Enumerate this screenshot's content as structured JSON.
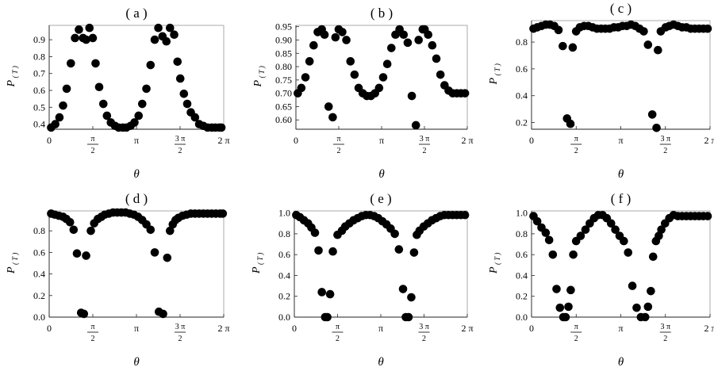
{
  "chart_data": [
    {
      "id": "a",
      "type": "scatter",
      "title": "( a )",
      "ylabel": "P",
      "ylabel_sub": "( T )",
      "xlabel": "θ",
      "xlim": [
        0,
        6.2832
      ],
      "ylim": [
        0.37,
        0.985
      ],
      "yticks": [
        0.4,
        0.5,
        0.6,
        0.7,
        0.8,
        0.9
      ],
      "ytick_labels": [
        "0.4",
        "0.5",
        "0.6",
        "0.7",
        "0.8",
        "0.9"
      ],
      "x": [
        0.07,
        0.22,
        0.37,
        0.5,
        0.63,
        0.78,
        0.93,
        1.07,
        1.22,
        1.33,
        1.45,
        1.57,
        1.67,
        1.8,
        1.95,
        2.08,
        2.22,
        2.37,
        2.5,
        2.65,
        2.78,
        2.93,
        3.07,
        3.22,
        3.35,
        3.5,
        3.65,
        3.8,
        3.93,
        4.08,
        4.22,
        4.35,
        4.5,
        4.62,
        4.72,
        4.85,
        4.97,
        5.1,
        5.25,
        5.4,
        5.55,
        5.7,
        5.85,
        5.98,
        6.12,
        6.2
      ],
      "y": [
        0.38,
        0.4,
        0.44,
        0.51,
        0.61,
        0.76,
        0.91,
        0.96,
        0.91,
        0.9,
        0.97,
        0.91,
        0.76,
        0.62,
        0.52,
        0.45,
        0.41,
        0.39,
        0.38,
        0.38,
        0.38,
        0.39,
        0.41,
        0.45,
        0.52,
        0.61,
        0.75,
        0.9,
        0.97,
        0.92,
        0.89,
        0.97,
        0.93,
        0.77,
        0.67,
        0.58,
        0.52,
        0.47,
        0.44,
        0.4,
        0.39,
        0.38,
        0.38,
        0.38,
        0.38,
        0.38
      ]
    },
    {
      "id": "b",
      "type": "scatter",
      "title": "( b )",
      "ylabel": "P",
      "ylabel_sub": "( T )",
      "xlabel": "θ",
      "xlim": [
        0,
        6.2832
      ],
      "ylim": [
        0.565,
        0.955
      ],
      "yticks": [
        0.6,
        0.65,
        0.7,
        0.75,
        0.8,
        0.85,
        0.9,
        0.95
      ],
      "ytick_labels": [
        "0.60",
        "0.65",
        "0.70",
        "0.75",
        "0.80",
        "0.85",
        "0.90",
        "0.95"
      ],
      "x": [
        0.07,
        0.2,
        0.35,
        0.5,
        0.65,
        0.8,
        0.95,
        1.05,
        1.2,
        1.35,
        1.45,
        1.57,
        1.7,
        1.85,
        2.0,
        2.15,
        2.3,
        2.45,
        2.6,
        2.75,
        2.9,
        3.05,
        3.2,
        3.35,
        3.5,
        3.65,
        3.8,
        3.95,
        4.1,
        4.25,
        4.4,
        4.5,
        4.65,
        4.72,
        4.85,
        5.0,
        5.15,
        5.3,
        5.45,
        5.6,
        5.75,
        5.9,
        6.05,
        6.2
      ],
      "y": [
        0.7,
        0.72,
        0.76,
        0.82,
        0.88,
        0.93,
        0.94,
        0.92,
        0.65,
        0.61,
        0.91,
        0.94,
        0.93,
        0.9,
        0.82,
        0.77,
        0.72,
        0.7,
        0.69,
        0.69,
        0.7,
        0.72,
        0.76,
        0.81,
        0.87,
        0.92,
        0.94,
        0.92,
        0.89,
        0.69,
        0.58,
        0.9,
        0.94,
        0.94,
        0.92,
        0.88,
        0.83,
        0.77,
        0.73,
        0.71,
        0.7,
        0.7,
        0.7,
        0.7
      ]
    },
    {
      "id": "c",
      "type": "scatter",
      "title": "( c )",
      "ylabel": "P",
      "ylabel_sub": "( T )",
      "xlabel": "θ",
      "xlim": [
        0,
        6.2832
      ],
      "ylim": [
        0.15,
        0.96
      ],
      "yticks": [
        0.2,
        0.4,
        0.6,
        0.8
      ],
      "ytick_labels": [
        "0.2",
        "0.4",
        "0.6",
        "0.8"
      ],
      "x": [
        0.07,
        0.2,
        0.35,
        0.5,
        0.65,
        0.8,
        0.95,
        1.1,
        1.25,
        1.37,
        1.45,
        1.57,
        1.7,
        1.85,
        2.0,
        2.15,
        2.3,
        2.45,
        2.6,
        2.75,
        2.9,
        3.05,
        3.2,
        3.35,
        3.5,
        3.65,
        3.8,
        3.95,
        4.1,
        4.25,
        4.4,
        4.45,
        4.55,
        4.72,
        4.85,
        5.0,
        5.15,
        5.3,
        5.45,
        5.6,
        5.75,
        5.9,
        6.05,
        6.2
      ],
      "y": [
        0.9,
        0.91,
        0.92,
        0.93,
        0.93,
        0.92,
        0.89,
        0.77,
        0.23,
        0.19,
        0.76,
        0.88,
        0.91,
        0.92,
        0.92,
        0.91,
        0.9,
        0.9,
        0.9,
        0.9,
        0.91,
        0.91,
        0.92,
        0.92,
        0.93,
        0.92,
        0.9,
        0.88,
        0.78,
        0.26,
        0.16,
        0.74,
        0.88,
        0.91,
        0.92,
        0.93,
        0.92,
        0.91,
        0.91,
        0.9,
        0.9,
        0.9,
        0.9,
        0.9
      ]
    },
    {
      "id": "d",
      "type": "scatter",
      "title": "( d )",
      "ylabel": "P",
      "ylabel_sub": "( T )",
      "xlabel": "θ",
      "xlim": [
        0,
        6.2832
      ],
      "ylim": [
        0,
        0.985
      ],
      "yticks": [
        0,
        0.2,
        0.4,
        0.6,
        0.8
      ],
      "ytick_labels": [
        "0.0",
        "0.2",
        "0.4",
        "0.6",
        "0.8"
      ],
      "x": [
        0.07,
        0.2,
        0.35,
        0.5,
        0.62,
        0.75,
        0.88,
        1.0,
        1.15,
        1.25,
        1.33,
        1.5,
        1.62,
        1.75,
        1.88,
        2.0,
        2.15,
        2.3,
        2.45,
        2.6,
        2.75,
        2.9,
        3.05,
        3.2,
        3.35,
        3.5,
        3.65,
        3.8,
        3.95,
        4.1,
        4.25,
        4.35,
        4.45,
        4.55,
        4.65,
        4.8,
        4.95,
        5.1,
        5.25,
        5.4,
        5.55,
        5.7,
        5.85,
        6.0,
        6.15,
        6.25
      ],
      "y": [
        0.96,
        0.95,
        0.94,
        0.93,
        0.91,
        0.88,
        0.81,
        0.59,
        0.04,
        0.03,
        0.57,
        0.8,
        0.87,
        0.91,
        0.93,
        0.95,
        0.96,
        0.97,
        0.97,
        0.97,
        0.97,
        0.96,
        0.95,
        0.93,
        0.9,
        0.86,
        0.81,
        0.6,
        0.05,
        0.03,
        0.55,
        0.8,
        0.86,
        0.9,
        0.92,
        0.94,
        0.95,
        0.96,
        0.96,
        0.96,
        0.96,
        0.96,
        0.96,
        0.96,
        0.96,
        0.96
      ]
    },
    {
      "id": "e",
      "type": "scatter",
      "title": "( e )",
      "ylabel": "P",
      "ylabel_sub": "( T )",
      "xlabel": "θ",
      "xlim": [
        0,
        6.2832
      ],
      "ylim": [
        0,
        1.02
      ],
      "yticks": [
        0,
        0.2,
        0.4,
        0.6,
        0.8,
        1.0
      ],
      "ytick_labels": [
        "0.0",
        "0.2",
        "0.4",
        "0.6",
        "0.8",
        "1.0"
      ],
      "x": [
        0.07,
        0.2,
        0.35,
        0.5,
        0.62,
        0.75,
        0.88,
        1.0,
        1.12,
        1.2,
        1.3,
        1.4,
        1.57,
        1.73,
        1.85,
        2.0,
        2.15,
        2.3,
        2.45,
        2.6,
        2.75,
        2.9,
        3.05,
        3.2,
        3.35,
        3.5,
        3.65,
        3.8,
        3.95,
        4.05,
        4.15,
        4.25,
        4.35,
        4.45,
        4.55,
        4.7,
        4.85,
        5.0,
        5.15,
        5.3,
        5.45,
        5.6,
        5.75,
        5.9,
        6.05,
        6.2
      ],
      "y": [
        0.98,
        0.96,
        0.93,
        0.9,
        0.86,
        0.81,
        0.64,
        0.24,
        0.0,
        0.0,
        0.22,
        0.63,
        0.79,
        0.83,
        0.87,
        0.9,
        0.93,
        0.95,
        0.97,
        0.98,
        0.98,
        0.97,
        0.95,
        0.92,
        0.89,
        0.85,
        0.8,
        0.65,
        0.27,
        0.0,
        0.0,
        0.19,
        0.62,
        0.79,
        0.83,
        0.87,
        0.9,
        0.93,
        0.95,
        0.97,
        0.98,
        0.98,
        0.98,
        0.98,
        0.98,
        0.98
      ]
    },
    {
      "id": "f",
      "type": "scatter",
      "title": "( f )",
      "ylabel": "P",
      "ylabel_sub": "( T )",
      "xlabel": "θ",
      "xlim": [
        0,
        6.2832
      ],
      "ylim": [
        0,
        1.02
      ],
      "yticks": [
        0,
        0.2,
        0.4,
        0.6,
        0.8,
        1.0
      ],
      "ytick_labels": [
        "0.0",
        "0.2",
        "0.4",
        "0.6",
        "0.8",
        "1.0"
      ],
      "x": [
        0.07,
        0.2,
        0.35,
        0.5,
        0.62,
        0.75,
        0.88,
        1.0,
        1.12,
        1.2,
        1.3,
        1.38,
        1.47,
        1.57,
        1.73,
        1.9,
        2.05,
        2.2,
        2.35,
        2.5,
        2.65,
        2.8,
        2.95,
        3.1,
        3.25,
        3.4,
        3.55,
        3.7,
        3.85,
        4.0,
        4.1,
        4.2,
        4.28,
        4.38,
        4.48,
        4.57,
        4.7,
        4.85,
        5.0,
        5.15,
        5.3,
        5.45,
        5.6,
        5.75,
        5.9,
        6.05,
        6.2
      ],
      "y": [
        0.97,
        0.92,
        0.86,
        0.81,
        0.74,
        0.6,
        0.27,
        0.09,
        0.0,
        0.0,
        0.1,
        0.26,
        0.6,
        0.73,
        0.78,
        0.84,
        0.9,
        0.95,
        0.98,
        0.98,
        0.95,
        0.9,
        0.84,
        0.78,
        0.73,
        0.62,
        0.3,
        0.09,
        0.0,
        0.0,
        0.1,
        0.25,
        0.58,
        0.73,
        0.78,
        0.84,
        0.9,
        0.95,
        0.98,
        0.97,
        0.97,
        0.97,
        0.97,
        0.97,
        0.97,
        0.97,
        0.97
      ]
    }
  ],
  "x_ticks": [
    {
      "value": 0,
      "label": "0"
    },
    {
      "value": 1.5708,
      "num": "π",
      "den": "2"
    },
    {
      "value": 3.1416,
      "label": "π"
    },
    {
      "value": 4.7124,
      "num": "3 π",
      "den": "2"
    },
    {
      "value": 6.2832,
      "label": "2 π"
    }
  ],
  "colors": {
    "marker": "#000000",
    "axis": "#222222",
    "frame": "#888888"
  }
}
